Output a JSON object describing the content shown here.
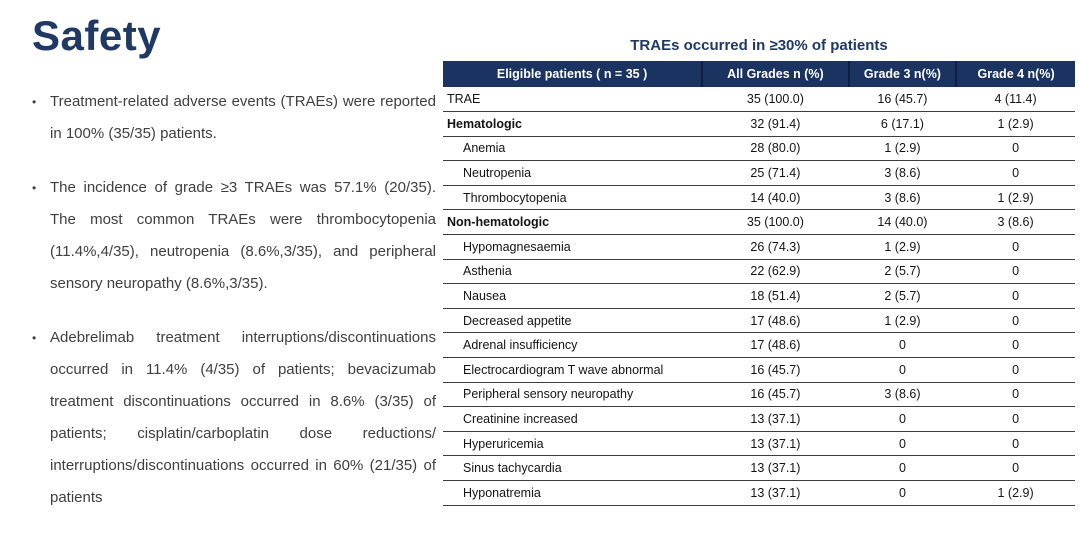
{
  "slide": {
    "title": "Safety",
    "bullet_char": "•",
    "bullets": [
      {
        "text": "Treatment-related adverse events (TRAEs) were reported in 100% (35/35) patients."
      },
      {
        "text": "The incidence of grade ≥3 TRAEs was 57.1% (20/35). The most common TRAEs were thrombocytopenia (11.4%,4/35), neutropenia (8.6%,3/35), and peripheral sensory neuropathy (8.6%,3/35)."
      },
      {
        "text": "Adebrelimab treatment interruptions/discontinuations occurred in 11.4% (4/35) of patients; bevacizumab treatment discontinuations occurred in 8.6% (3/35) of patients; cisplatin/carboplatin dose reductions/ interruptions/discontinuations occurred in 60% (21/35) of patients"
      }
    ]
  },
  "table": {
    "title": "TRAEs occurred in ≥30% of patients",
    "headers": [
      "Eligible patients ( n = 35 )",
      "All Grades  n (%)",
      "Grade 3   n(%)",
      "Grade 4  n(%)"
    ],
    "rows": [
      {
        "label": "TRAE",
        "style": "plain",
        "all_grades": "35 (100.0)",
        "grade3": "16 (45.7)",
        "grade4": "4 (11.4)"
      },
      {
        "label": "Hematologic",
        "style": "bold",
        "all_grades": "32 (91.4)",
        "grade3": "6 (17.1)",
        "grade4": "1 (2.9)"
      },
      {
        "label": "Anemia",
        "style": "indent",
        "all_grades": "28 (80.0)",
        "grade3": "1 (2.9)",
        "grade4": "0"
      },
      {
        "label": "Neutropenia",
        "style": "indent",
        "all_grades": "25 (71.4)",
        "grade3": "3 (8.6)",
        "grade4": "0"
      },
      {
        "label": "Thrombocytopenia",
        "style": "indent",
        "all_grades": "14 (40.0)",
        "grade3": "3 (8.6)",
        "grade4": "1 (2.9)"
      },
      {
        "label": "Non-hematologic",
        "style": "bold",
        "all_grades": "35 (100.0)",
        "grade3": "14 (40.0)",
        "grade4": "3 (8.6)"
      },
      {
        "label": "Hypomagnesaemia",
        "style": "indent",
        "all_grades": "26 (74.3)",
        "grade3": "1 (2.9)",
        "grade4": "0"
      },
      {
        "label": "Asthenia",
        "style": "indent",
        "all_grades": "22 (62.9)",
        "grade3": "2 (5.7)",
        "grade4": "0"
      },
      {
        "label": "Nausea",
        "style": "indent",
        "all_grades": "18 (51.4)",
        "grade3": "2 (5.7)",
        "grade4": "0"
      },
      {
        "label": "Decreased appetite",
        "style": "indent",
        "all_grades": "17 (48.6)",
        "grade3": "1 (2.9)",
        "grade4": "0"
      },
      {
        "label": "Adrenal insufficiency",
        "style": "indent",
        "all_grades": "17 (48.6)",
        "grade3": "0",
        "grade4": "0"
      },
      {
        "label": "Electrocardiogram T wave abnormal",
        "style": "indent",
        "all_grades": "16 (45.7)",
        "grade3": "0",
        "grade4": "0"
      },
      {
        "label": "Peripheral sensory neuropathy",
        "style": "indent",
        "all_grades": "16 (45.7)",
        "grade3": "3 (8.6)",
        "grade4": "0"
      },
      {
        "label": "Creatinine increased",
        "style": "indent",
        "all_grades": "13 (37.1)",
        "grade3": "0",
        "grade4": "0"
      },
      {
        "label": "Hyperuricemia",
        "style": "indent",
        "all_grades": "13 (37.1)",
        "grade3": "0",
        "grade4": "0"
      },
      {
        "label": "Sinus tachycardia",
        "style": "indent",
        "all_grades": "13 (37.1)",
        "grade3": "0",
        "grade4": "0"
      },
      {
        "label": "Hyponatremia",
        "style": "indent",
        "all_grades": "13 (37.1)",
        "grade3": "0",
        "grade4": "1 (2.9)"
      }
    ]
  },
  "colors": {
    "navy_title": "#1F3864",
    "header_bg": "#1B3361",
    "header_divider": "#0C1F40",
    "body_text": "#3F3F3F",
    "row_line": "#3D3D3D"
  }
}
